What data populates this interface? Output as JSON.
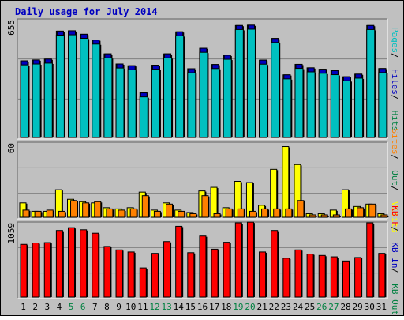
{
  "title": "Daily usage for July 2014",
  "colors": {
    "frame_bg": "#c0c0c0",
    "title": "#0000c0",
    "hits": "#008040",
    "files": "#0000c0",
    "pages": "#00c0c0",
    "visits": "#ffff00",
    "sites": "#ff8000",
    "kb_out": "#008040",
    "kb_in": "#0000c0",
    "kb_f": "#ff0000",
    "day_weekday": "#000000",
    "day_weekend": "#008040"
  },
  "chart_data": [
    {
      "type": "bar",
      "panel": "top",
      "ymax_label": "655",
      "ylim": [
        0,
        655
      ],
      "legend": [
        "Pages",
        "Files",
        "Hits"
      ],
      "legend_separator": "/",
      "categories": [
        "1",
        "2",
        "3",
        "4",
        "5",
        "6",
        "7",
        "8",
        "9",
        "10",
        "11",
        "12",
        "13",
        "14",
        "15",
        "16",
        "17",
        "18",
        "19",
        "20",
        "21",
        "22",
        "23",
        "24",
        "25",
        "26",
        "27",
        "28",
        "29",
        "30",
        "31"
      ],
      "weekend_days": [
        "5",
        "6",
        "12",
        "13",
        "19",
        "20",
        "26",
        "27"
      ],
      "series": [
        {
          "name": "Hits",
          "values": [
            438,
            443,
            448,
            608,
            610,
            590,
            557,
            478,
            420,
            410,
            255,
            413,
            478,
            604,
            393,
            510,
            417,
            470,
            640,
            642,
            442,
            566,
            358,
            418,
            398,
            390,
            382,
            347,
            362,
            640,
            394
          ]
        },
        {
          "name": "Files",
          "values": [
            438,
            443,
            448,
            608,
            610,
            590,
            557,
            478,
            420,
            410,
            255,
            413,
            478,
            604,
            393,
            510,
            417,
            470,
            640,
            642,
            442,
            566,
            358,
            418,
            398,
            390,
            382,
            347,
            362,
            640,
            394
          ]
        },
        {
          "name": "Pages",
          "values": [
            433,
            438,
            443,
            603,
            605,
            585,
            552,
            473,
            415,
            405,
            250,
            408,
            473,
            599,
            388,
            505,
            412,
            465,
            635,
            637,
            437,
            561,
            353,
            413,
            393,
            385,
            377,
            342,
            357,
            635,
            389
          ]
        }
      ]
    },
    {
      "type": "bar",
      "panel": "middle",
      "ymax_label": "60",
      "ylim": [
        0,
        60
      ],
      "legend": [
        "Sites",
        "Out",
        "Visits"
      ],
      "legend_separator": "/",
      "categories": [
        "1",
        "2",
        "3",
        "4",
        "5",
        "6",
        "7",
        "8",
        "9",
        "10",
        "11",
        "12",
        "13",
        "14",
        "15",
        "16",
        "17",
        "18",
        "19",
        "20",
        "21",
        "22",
        "23",
        "24",
        "25",
        "26",
        "27",
        "28",
        "29",
        "30",
        "31"
      ],
      "series": [
        {
          "name": "Visits",
          "values": [
            12,
            5,
            5,
            23,
            15,
            13,
            12,
            8,
            7,
            8,
            21,
            6,
            12,
            6,
            4,
            22,
            25,
            8,
            30,
            29,
            10,
            40,
            59,
            44,
            3,
            3,
            6,
            23,
            9,
            11,
            3
          ]
        },
        {
          "name": "Sites",
          "values": [
            6,
            5,
            6,
            5,
            14,
            12,
            13,
            7,
            6,
            7,
            18,
            5,
            11,
            5,
            3,
            18,
            3,
            7,
            7,
            5,
            7,
            7,
            7,
            14,
            2,
            2,
            2,
            7,
            8,
            11,
            2
          ]
        }
      ]
    },
    {
      "type": "bar",
      "panel": "bottom",
      "ymax_label": "1059",
      "ylim": [
        0,
        1059
      ],
      "legend": [
        "KB F",
        "KB In",
        "KB Out"
      ],
      "legend_separator": "/",
      "categories": [
        "1",
        "2",
        "3",
        "4",
        "5",
        "6",
        "7",
        "8",
        "9",
        "10",
        "11",
        "12",
        "13",
        "14",
        "15",
        "16",
        "17",
        "18",
        "19",
        "20",
        "21",
        "22",
        "23",
        "24",
        "25",
        "26",
        "27",
        "28",
        "29",
        "30",
        "31"
      ],
      "series": [
        {
          "name": "KB F",
          "values": [
            760,
            780,
            785,
            960,
            1000,
            970,
            920,
            730,
            680,
            650,
            420,
            630,
            800,
            1020,
            640,
            880,
            690,
            790,
            1070,
            1080,
            650,
            960,
            560,
            680,
            620,
            600,
            580,
            520,
            570,
            1070,
            630
          ]
        }
      ]
    }
  ]
}
